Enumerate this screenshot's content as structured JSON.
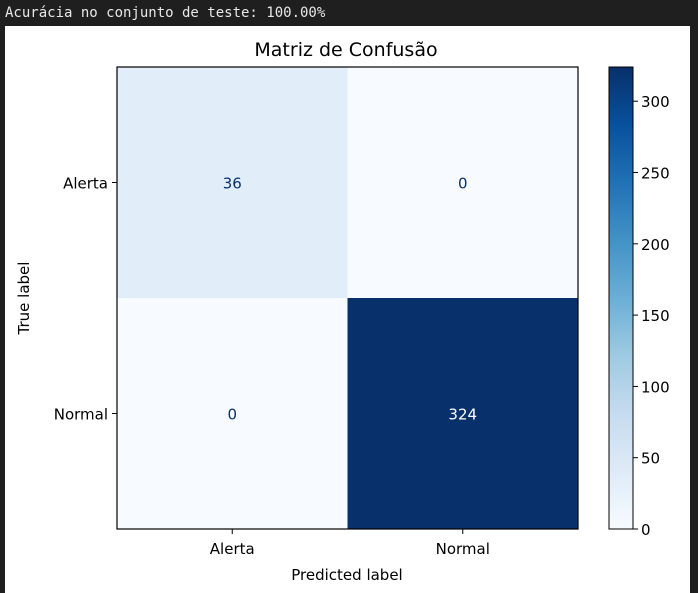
{
  "console": {
    "output_line": "Acurácia no conjunto de teste: 100.00%"
  },
  "chart_data": {
    "type": "heatmap",
    "title": "Matriz de Confusão",
    "xlabel": "Predicted label",
    "ylabel": "True label",
    "x_categories": [
      "Alerta",
      "Normal"
    ],
    "y_categories": [
      "Alerta",
      "Normal"
    ],
    "values": [
      [
        36,
        0
      ],
      [
        0,
        324
      ]
    ],
    "colormap": "Blues",
    "colorbar": {
      "min": 0,
      "max": 324,
      "ticks": [
        0,
        50,
        100,
        150,
        200,
        250,
        300
      ],
      "tick_labels": [
        "0",
        "50",
        "100",
        "150",
        "200",
        "250",
        "300"
      ]
    },
    "grid": false
  }
}
